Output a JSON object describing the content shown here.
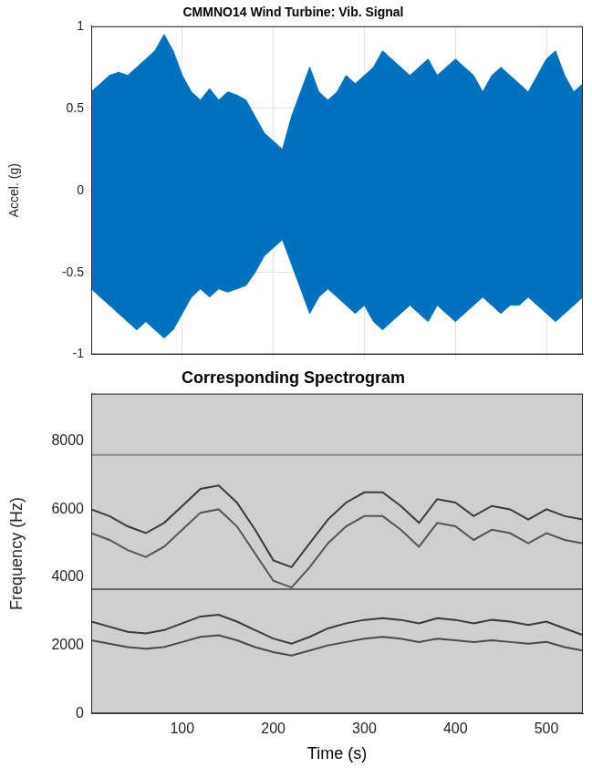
{
  "chart_data": [
    {
      "type": "line",
      "title": "CMMNO14 Wind Turbine: Vib. Signal",
      "y_label": "Accel. (g)",
      "x": [
        0,
        10,
        20,
        30,
        40,
        50,
        60,
        70,
        80,
        90,
        100,
        110,
        120,
        130,
        140,
        150,
        160,
        170,
        180,
        190,
        200,
        210,
        220,
        230,
        240,
        250,
        260,
        270,
        280,
        290,
        300,
        310,
        320,
        330,
        340,
        350,
        360,
        370,
        380,
        390,
        400,
        410,
        420,
        430,
        440,
        450,
        460,
        470,
        480,
        490,
        500,
        510,
        520,
        530,
        540
      ],
      "series": [
        {
          "color": "#0072bd",
          "values": [
            0.6,
            0.65,
            0.7,
            0.72,
            0.7,
            0.75,
            0.8,
            0.85,
            0.95,
            0.85,
            0.7,
            0.6,
            0.55,
            0.62,
            0.55,
            0.6,
            0.58,
            0.55,
            0.45,
            0.35,
            0.3,
            0.25,
            0.45,
            0.6,
            0.75,
            0.6,
            0.55,
            0.6,
            0.7,
            0.65,
            0.7,
            0.75,
            0.85,
            0.8,
            0.75,
            0.7,
            0.75,
            0.8,
            0.7,
            0.75,
            0.8,
            0.75,
            0.7,
            0.6,
            0.7,
            0.75,
            0.7,
            0.65,
            0.6,
            0.7,
            0.8,
            0.85,
            0.7,
            0.6,
            0.65
          ]
        },
        {
          "color": "#0072bd",
          "values": [
            -0.6,
            -0.65,
            -0.7,
            -0.75,
            -0.8,
            -0.85,
            -0.8,
            -0.85,
            -0.9,
            -0.85,
            -0.75,
            -0.65,
            -0.6,
            -0.65,
            -0.6,
            -0.62,
            -0.6,
            -0.58,
            -0.5,
            -0.4,
            -0.35,
            -0.3,
            -0.45,
            -0.6,
            -0.75,
            -0.65,
            -0.6,
            -0.65,
            -0.7,
            -0.75,
            -0.7,
            -0.8,
            -0.85,
            -0.8,
            -0.75,
            -0.7,
            -0.75,
            -0.8,
            -0.7,
            -0.75,
            -0.8,
            -0.75,
            -0.7,
            -0.65,
            -0.7,
            -0.75,
            -0.7,
            -0.7,
            -0.65,
            -0.7,
            -0.75,
            -0.8,
            -0.75,
            -0.7,
            -0.65
          ]
        }
      ],
      "xlim": [
        0,
        540
      ],
      "xticks": [
        100,
        200,
        300,
        400,
        500
      ],
      "ylim": [
        -1,
        1
      ],
      "yticks": [
        -1,
        -0.5,
        0,
        0.5,
        1
      ],
      "grid": true,
      "tick_labels": "y"
    },
    {
      "type": "line",
      "title": "Corresponding Spectrogram",
      "x_label": "Time (s)",
      "y_label": "Frequency (Hz)",
      "x": [
        0,
        20,
        40,
        60,
        80,
        100,
        120,
        140,
        160,
        180,
        200,
        220,
        240,
        260,
        280,
        300,
        320,
        340,
        360,
        380,
        400,
        420,
        440,
        460,
        480,
        500,
        520,
        540
      ],
      "series": [
        {
          "color": "#3a3a3a",
          "values": [
            6000,
            5800,
            5500,
            5300,
            5600,
            6100,
            6600,
            6700,
            6200,
            5400,
            4500,
            4300,
            5000,
            5700,
            6200,
            6500,
            6500,
            6100,
            5600,
            6300,
            6200,
            5800,
            6100,
            6000,
            5700,
            6000,
            5800,
            5700
          ]
        },
        {
          "color": "#555555",
          "values": [
            5300,
            5100,
            4800,
            4600,
            4900,
            5400,
            5900,
            6000,
            5500,
            4700,
            3900,
            3700,
            4300,
            5000,
            5500,
            5800,
            5800,
            5400,
            4900,
            5600,
            5500,
            5100,
            5400,
            5300,
            5000,
            5300,
            5100,
            5000
          ]
        },
        {
          "color": "#3a3a3a",
          "values": [
            2700,
            2550,
            2400,
            2350,
            2450,
            2650,
            2850,
            2900,
            2700,
            2450,
            2200,
            2050,
            2250,
            2500,
            2650,
            2750,
            2800,
            2750,
            2650,
            2800,
            2750,
            2650,
            2750,
            2700,
            2600,
            2700,
            2500,
            2300
          ]
        },
        {
          "color": "#4a4a4a",
          "values": [
            2150,
            2050,
            1950,
            1900,
            1950,
            2100,
            2250,
            2300,
            2150,
            1950,
            1800,
            1700,
            1850,
            2000,
            2100,
            2200,
            2250,
            2200,
            2100,
            2200,
            2150,
            2100,
            2150,
            2100,
            2050,
            2100,
            1950,
            1850
          ]
        },
        {
          "color": "#666666",
          "values": [
            3650,
            3650,
            3650,
            3650,
            3650,
            3650,
            3650,
            3650,
            3650,
            3650,
            3650,
            3650,
            3650,
            3650,
            3650,
            3650,
            3650,
            3650,
            3650,
            3650,
            3650,
            3650,
            3650,
            3650,
            3650,
            3650,
            3650,
            3650
          ]
        },
        {
          "color": "#8a8a8a",
          "values": [
            7600,
            7600,
            7600,
            7600,
            7600,
            7600,
            7600,
            7600,
            7600,
            7600,
            7600,
            7600,
            7600,
            7600,
            7600,
            7600,
            7600,
            7600,
            7600,
            7600,
            7600,
            7600,
            7600,
            7600,
            7600,
            7600,
            7600,
            7600
          ]
        }
      ],
      "xlim": [
        0,
        540
      ],
      "xticks": [
        100,
        200,
        300,
        400,
        500
      ],
      "ylim": [
        0,
        9400
      ],
      "yticks": [
        0,
        2000,
        4000,
        6000,
        8000
      ],
      "grid": false
    }
  ]
}
